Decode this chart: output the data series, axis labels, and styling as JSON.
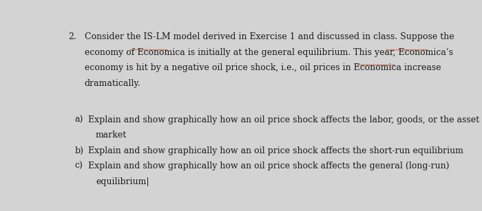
{
  "background_color": "#d3d3d3",
  "text_color": "#1a1a1a",
  "question_number": "2.",
  "line1": "Consider the IS-LM model derived in Exercise 1 and discussed in class. Suppose the",
  "line2": "economy of Economica is initially at the general equilibrium. This year, Economica’s",
  "line3": "economy is hit by a negative oil price shock, i.e., oil prices in Economica increase",
  "line4": "dramatically.",
  "item_a_line1": "Explain and show graphically how an oil price shock affects the labor, goods, or the asset",
  "item_a_line2": "market",
  "item_b_line1": "Explain and show graphically how an oil price shock affects the short-run equilibrium",
  "item_c_line1": "Explain and show graphically how an oil price shock affects the general (long-run)",
  "item_c_line2": "equilibrium|",
  "label_a": "a)",
  "label_b": "b)",
  "label_c": "c)",
  "font_size": 9.0,
  "underline_color": "#cc2200"
}
